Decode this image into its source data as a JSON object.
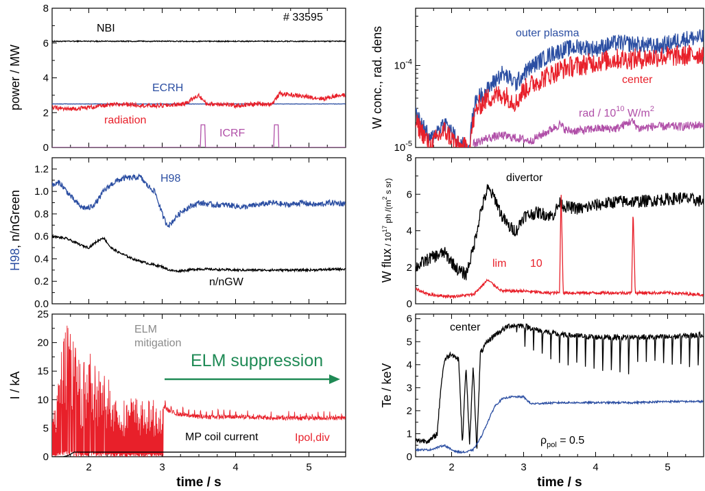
{
  "figure": {
    "shot": "# 33595",
    "xlabel": "time / s",
    "xlim": [
      1.5,
      5.5
    ],
    "xticks": [
      2,
      3,
      4,
      5
    ]
  },
  "chart_data": [
    {
      "id": "power",
      "type": "line",
      "ylabel": "power / MW",
      "ylim": [
        0,
        8
      ],
      "yticks": [
        0,
        2,
        4,
        6,
        8
      ],
      "series": [
        {
          "name": "NBI",
          "color": "#000000",
          "x": [
            1.5,
            2.0,
            2.5,
            3.0,
            3.5,
            4.0,
            4.5,
            5.0,
            5.5
          ],
          "y": [
            6.1,
            6.1,
            6.1,
            6.1,
            6.1,
            6.1,
            6.1,
            6.1,
            6.1
          ]
        },
        {
          "name": "ECRH",
          "color": "#2b4ea2",
          "x": [
            1.5,
            2.5,
            3.5,
            4.5,
            5.5
          ],
          "y": [
            2.5,
            2.5,
            2.5,
            2.5,
            2.5
          ]
        },
        {
          "name": "radiation",
          "color": "#e8202a",
          "x": [
            1.5,
            1.7,
            2.0,
            2.2,
            2.5,
            2.8,
            3.0,
            3.3,
            3.5,
            3.6,
            3.8,
            4.0,
            4.3,
            4.5,
            4.6,
            4.8,
            5.0,
            5.2,
            5.4,
            5.5
          ],
          "y": [
            2.3,
            2.2,
            2.3,
            2.4,
            2.5,
            2.4,
            2.4,
            2.5,
            3.0,
            2.5,
            2.5,
            2.4,
            2.5,
            2.5,
            3.1,
            3.0,
            2.9,
            2.8,
            3.0,
            3.0
          ]
        },
        {
          "name": "ICRF",
          "color": "#b04fa8",
          "x": [
            1.5,
            3.52,
            3.53,
            3.58,
            3.59,
            4.52,
            4.53,
            4.58,
            4.59,
            5.5
          ],
          "y": [
            0,
            0,
            1.3,
            1.3,
            0,
            0,
            1.3,
            1.3,
            0,
            0
          ]
        }
      ]
    },
    {
      "id": "wconc",
      "type": "line",
      "ylabel": "W conc., rad. dens",
      "yscale": "log",
      "ylim": [
        1e-05,
        0.0005
      ],
      "yticklabels": [
        "10-5",
        "10-4"
      ],
      "series": [
        {
          "name": "outer plasma",
          "color": "#2b4ea2",
          "x": [
            1.5,
            1.7,
            1.9,
            2.1,
            2.25,
            2.35,
            2.5,
            2.7,
            2.9,
            3.0,
            3.2,
            3.4,
            3.6,
            3.8,
            4.0,
            4.3,
            4.6,
            4.9,
            5.2,
            5.5
          ],
          "y": [
            2.5e-05,
            1.2e-05,
            2e-05,
            1.1e-05,
            1e-05,
            4e-05,
            5e-05,
            8e-05,
            6e-05,
            8e-05,
            0.00011,
            0.00014,
            0.00016,
            0.00017,
            0.00016,
            0.00019,
            0.00018,
            0.00017,
            0.00021,
            0.00022
          ]
        },
        {
          "name": "center",
          "color": "#e8202a",
          "x": [
            1.5,
            1.7,
            1.9,
            2.1,
            2.25,
            2.35,
            2.5,
            2.7,
            2.9,
            3.0,
            3.2,
            3.4,
            3.6,
            3.8,
            4.0,
            4.3,
            4.6,
            4.9,
            5.2,
            5.5
          ],
          "y": [
            2e-05,
            1e-05,
            1.6e-05,
            1e-05,
            1e-05,
            3e-05,
            4e-05,
            4.5e-05,
            3.5e-05,
            5e-05,
            6.5e-05,
            8e-05,
            9.5e-05,
            0.0001,
            0.00011,
            0.00012,
            0.00012,
            0.00013,
            0.00013,
            0.00014
          ]
        },
        {
          "name": "rad / 10^10 W/m^2",
          "color": "#b04fa8",
          "x": [
            2.3,
            2.5,
            2.7,
            2.9,
            3.1,
            3.3,
            3.5,
            3.6,
            3.8,
            4.0,
            4.3,
            4.5,
            4.6,
            4.8,
            5.0,
            5.2,
            5.5
          ],
          "y": [
            1.1e-05,
            1.3e-05,
            1.4e-05,
            1.3e-05,
            1.2e-05,
            1.5e-05,
            1.9e-05,
            1.6e-05,
            1.6e-05,
            1.7e-05,
            1.7e-05,
            2.1e-05,
            1.7e-05,
            1.8e-05,
            1.8e-05,
            1.8e-05,
            1.9e-05
          ]
        }
      ]
    },
    {
      "id": "h98",
      "type": "line",
      "ylabel": "H98, n/nGreen",
      "ylim": [
        0,
        1.3
      ],
      "yticks": [
        0,
        0.2,
        0.4,
        0.6,
        0.8,
        1.0,
        1.2
      ],
      "series": [
        {
          "name": "H98",
          "color": "#2b4ea2",
          "x": [
            1.5,
            1.6,
            1.7,
            1.8,
            1.9,
            2.0,
            2.1,
            2.2,
            2.3,
            2.4,
            2.5,
            2.6,
            2.7,
            2.8,
            2.9,
            3.0,
            3.05,
            3.1,
            3.2,
            3.3,
            3.5,
            3.7,
            3.9,
            4.1,
            4.3,
            4.5,
            4.7,
            4.9,
            5.1,
            5.3,
            5.5
          ],
          "y": [
            1.05,
            1.08,
            1.0,
            0.92,
            0.86,
            0.85,
            0.9,
            1.0,
            1.06,
            1.1,
            1.12,
            1.12,
            1.13,
            1.05,
            1.0,
            0.8,
            0.72,
            0.7,
            0.78,
            0.84,
            0.9,
            0.88,
            0.88,
            0.86,
            0.88,
            0.9,
            0.88,
            0.9,
            0.88,
            0.9,
            0.89
          ]
        },
        {
          "name": "n/nGW",
          "color": "#000000",
          "x": [
            1.5,
            1.7,
            1.9,
            2.0,
            2.1,
            2.2,
            2.3,
            2.4,
            2.6,
            2.8,
            3.0,
            3.1,
            3.2,
            3.5,
            4.0,
            4.5,
            5.0,
            5.5
          ],
          "y": [
            0.6,
            0.58,
            0.52,
            0.5,
            0.55,
            0.59,
            0.5,
            0.46,
            0.4,
            0.36,
            0.33,
            0.3,
            0.29,
            0.31,
            0.3,
            0.3,
            0.3,
            0.31
          ]
        }
      ]
    },
    {
      "id": "wflux",
      "type": "line",
      "ylabel": "W  flux / 10^17 ph /(m^2 s sr)",
      "ylim": [
        0,
        8
      ],
      "yticks": [
        0,
        2,
        4,
        6,
        8
      ],
      "series": [
        {
          "name": "divertor",
          "color": "#000000",
          "x": [
            1.5,
            1.7,
            1.9,
            2.1,
            2.2,
            2.3,
            2.4,
            2.5,
            2.6,
            2.7,
            2.8,
            2.9,
            3.0,
            3.2,
            3.4,
            3.5,
            3.6,
            3.8,
            4.0,
            4.3,
            4.6,
            4.9,
            5.2,
            5.5
          ],
          "y": [
            2.0,
            2.5,
            2.8,
            1.8,
            1.6,
            3.0,
            5.0,
            6.3,
            5.8,
            4.8,
            4.2,
            4.0,
            4.8,
            5.0,
            4.8,
            5.5,
            5.3,
            5.2,
            5.4,
            5.6,
            5.6,
            5.7,
            5.8,
            5.6
          ]
        },
        {
          "name": "lim 10",
          "color": "#e8202a",
          "x": [
            1.5,
            1.7,
            2.0,
            2.3,
            2.5,
            2.7,
            3.0,
            3.3,
            3.5,
            3.52,
            3.55,
            3.6,
            3.8,
            4.0,
            4.3,
            4.5,
            4.52,
            4.55,
            4.6,
            4.8,
            5.0,
            5.5
          ],
          "y": [
            0.8,
            0.5,
            0.4,
            0.5,
            1.3,
            0.7,
            0.7,
            0.6,
            0.6,
            6.3,
            0.6,
            0.6,
            0.6,
            0.6,
            0.6,
            0.6,
            5.3,
            0.6,
            0.6,
            0.6,
            0.6,
            0.5
          ]
        }
      ]
    },
    {
      "id": "ipol",
      "type": "line",
      "ylabel": "I / kA",
      "ylim": [
        0,
        25
      ],
      "yticks": [
        0,
        5,
        10,
        15,
        20,
        25
      ],
      "series": [
        {
          "name": "Ipol,div",
          "color": "#e8202a",
          "x": [
            1.5,
            1.6,
            1.7,
            1.8,
            1.9,
            2.0,
            2.1,
            2.2,
            2.3,
            2.4,
            2.5,
            2.6,
            2.7,
            2.8,
            2.9,
            3.0,
            3.1,
            3.2,
            3.5,
            4.0,
            4.5,
            5.0,
            5.5
          ],
          "y": [
            6,
            15,
            21,
            18,
            14,
            17,
            14,
            13,
            12,
            11,
            10,
            11,
            10,
            10,
            10,
            9,
            8,
            7.5,
            7,
            7,
            6.8,
            6.8,
            6.8
          ]
        },
        {
          "name": "MP coil current",
          "color": "#000000",
          "x": [
            1.5,
            1.65,
            1.72,
            1.8,
            5.5
          ],
          "y": [
            0,
            0,
            0.2,
            0.8,
            0.8
          ]
        }
      ]
    },
    {
      "id": "te",
      "type": "line",
      "ylabel": "Te / keV",
      "ylim": [
        0,
        6.2
      ],
      "yticks": [
        0,
        1,
        2,
        3,
        4,
        5,
        6
      ],
      "series": [
        {
          "name": "center",
          "color": "#000000",
          "x": [
            1.5,
            1.7,
            1.8,
            1.85,
            1.9,
            2.0,
            2.1,
            2.15,
            2.2,
            2.25,
            2.3,
            2.35,
            2.4,
            2.5,
            2.6,
            2.7,
            2.8,
            3.0,
            3.2,
            3.5,
            4.0,
            4.5,
            5.0,
            5.5
          ],
          "y": [
            0.7,
            0.7,
            1.0,
            3.0,
            4.2,
            4.5,
            4.2,
            0.5,
            4.0,
            0.5,
            4.0,
            0.3,
            4.5,
            5.0,
            5.3,
            5.5,
            5.7,
            5.7,
            5.5,
            5.3,
            5.2,
            5.2,
            5.2,
            5.3
          ]
        },
        {
          "name": "ρpol = 0.5",
          "color": "#2b4ea2",
          "x": [
            1.5,
            1.7,
            1.9,
            2.0,
            2.1,
            2.2,
            2.3,
            2.4,
            2.5,
            2.6,
            2.7,
            2.8,
            3.0,
            3.1,
            3.5,
            4.0,
            4.5,
            5.0,
            5.5
          ],
          "y": [
            0.3,
            0.3,
            0.5,
            0.3,
            0.2,
            0.2,
            0.3,
            0.8,
            1.5,
            2.2,
            2.5,
            2.6,
            2.6,
            2.3,
            2.35,
            2.35,
            2.35,
            2.4,
            2.4
          ]
        }
      ]
    }
  ],
  "labels": {
    "shot": "# 33595",
    "power_nbi": "NBI",
    "power_ecrh": "ECRH",
    "power_radiation": "radiation",
    "power_icrf": "ICRF",
    "wconc_outer": "outer plasma",
    "wconc_center": "center",
    "wconc_rad_base": "rad / 10",
    "wconc_rad_exp": "10",
    "wconc_rad_unit": " W/m",
    "wconc_rad_unit_exp": "2",
    "h98_label": "H98",
    "ngw_label": "n/nGW",
    "wflux_divertor": "divertor",
    "wflux_lim": "lim",
    "wflux_10": "10",
    "ipol_elm_mitigation_1": "ELM",
    "ipol_elm_mitigation_2": "mitigation",
    "ipol_elm_suppression": "ELM suppression",
    "ipol_mp_coil": "MP coil current",
    "ipol_ipol": "Ipol,div",
    "te_center": "center",
    "te_rho": "ρ",
    "te_rho_sub": "pol",
    "te_rho_val": " = 0.5"
  },
  "colors": {
    "blue": "#2b4ea2",
    "red": "#e8202a",
    "magenta": "#b04fa8",
    "green": "#1f8a55",
    "grey": "#8a8a8a",
    "black": "#000000"
  }
}
